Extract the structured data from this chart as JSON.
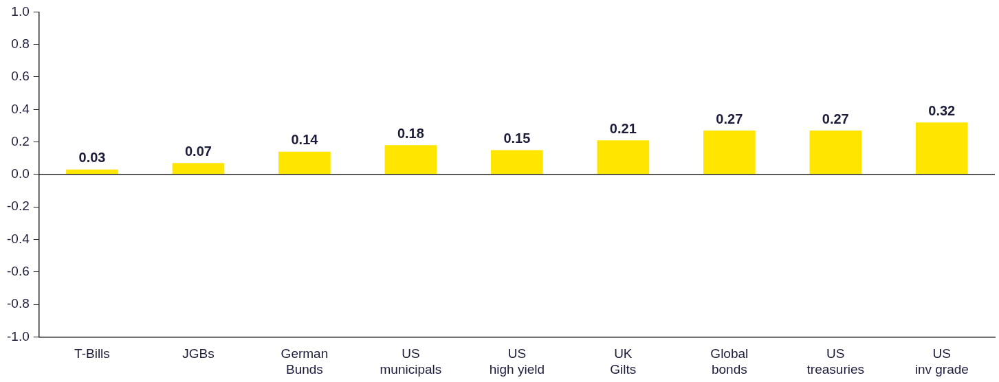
{
  "chart_data": {
    "type": "bar",
    "categories": [
      "T-Bills",
      "JGBs",
      "German\nBunds",
      "US\nmunicipals",
      "US\nhigh yield",
      "UK\nGilts",
      "Global\nbonds",
      "US\ntreasuries",
      "US\ninv grade"
    ],
    "values": [
      0.03,
      0.07,
      0.14,
      0.18,
      0.15,
      0.21,
      0.27,
      0.27,
      0.32
    ],
    "color": "#ffe600",
    "ylim": [
      -1.0,
      1.0
    ],
    "yticks": [
      {
        "value": -1,
        "label": "-1.0"
      },
      {
        "value": -0.8,
        "label": "-0.8"
      },
      {
        "value": -0.6,
        "label": "-0.6"
      },
      {
        "value": -0.4,
        "label": "-0.4"
      },
      {
        "value": -0.2,
        "label": "-0.2"
      },
      {
        "value": 0,
        "label": "0.0"
      },
      {
        "value": 0.2,
        "label": "0.2"
      },
      {
        "value": 0.4,
        "label": "0.4"
      },
      {
        "value": 0.6,
        "label": "0.6"
      },
      {
        "value": 0.8,
        "label": "0.8"
      },
      {
        "value": 1,
        "label": "1.0"
      }
    ],
    "ref_lines": [
      {
        "axis": "y",
        "value": 0,
        "color": "#222222"
      }
    ],
    "data_labels": true,
    "grid": false,
    "legend": false
  }
}
